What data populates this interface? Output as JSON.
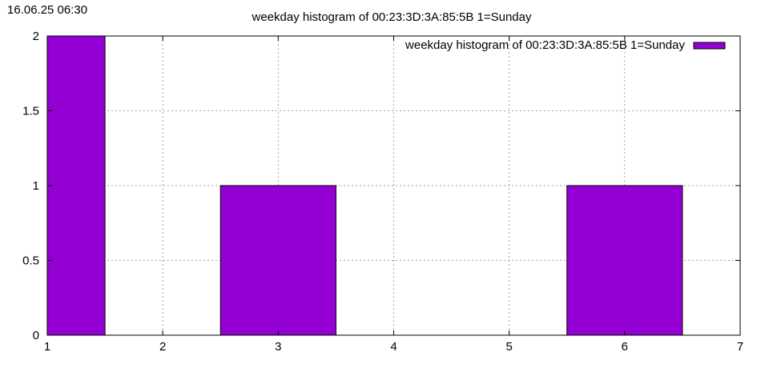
{
  "timestamp": "16.06.25 06:30",
  "chart_data": {
    "type": "bar",
    "title": "weekday histogram of 00:23:3D:3A:85:5B 1=Sunday",
    "xlabel": "",
    "ylabel": "",
    "xlim": [
      1,
      7
    ],
    "ylim": [
      0,
      2
    ],
    "xticks": [
      "1",
      "2",
      "3",
      "4",
      "5",
      "6",
      "7"
    ],
    "yticks": [
      "0",
      "0.5",
      "1",
      "1.5",
      "2"
    ],
    "grid": true,
    "legend_position": "top-right",
    "bar_width": 1,
    "series": [
      {
        "name": "weekday histogram of 00:23:3D:3A:85:5B 1=Sunday",
        "color": "#9400d3",
        "points": [
          {
            "x": 1,
            "y": 2
          },
          {
            "x": 3,
            "y": 1
          },
          {
            "x": 6,
            "y": 1
          }
        ]
      }
    ]
  }
}
